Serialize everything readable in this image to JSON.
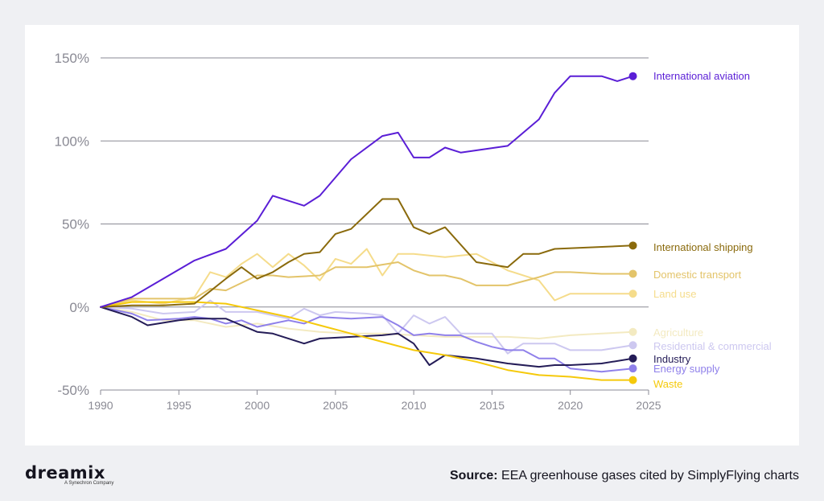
{
  "chart_data": {
    "type": "line",
    "title": "",
    "xlabel": "",
    "ylabel": "",
    "xlim": [
      1990,
      2025
    ],
    "ylim": [
      -50,
      150
    ],
    "xticks": [
      1990,
      1995,
      2000,
      2005,
      2010,
      2015,
      2020,
      2025
    ],
    "yticks": [
      150,
      100,
      50,
      0,
      -50
    ],
    "ytick_labels": [
      "150%",
      "100%",
      "50%",
      "0%",
      "-50%"
    ],
    "grid": "horizontal",
    "legend": "direct labels at line ends, right",
    "series": [
      {
        "name": "International aviation",
        "color": "#5a1ed6",
        "points": [
          [
            1990,
            0
          ],
          [
            1992,
            6
          ],
          [
            1994,
            17
          ],
          [
            1996,
            28
          ],
          [
            1998,
            35
          ],
          [
            2000,
            52
          ],
          [
            2001,
            67
          ],
          [
            2003,
            61
          ],
          [
            2004,
            67
          ],
          [
            2006,
            89
          ],
          [
            2008,
            103
          ],
          [
            2009,
            105
          ],
          [
            2010,
            90
          ],
          [
            2011,
            90
          ],
          [
            2012,
            96
          ],
          [
            2013,
            93
          ],
          [
            2016,
            97
          ],
          [
            2018,
            113
          ],
          [
            2019,
            129
          ],
          [
            2020,
            139
          ],
          [
            2022,
            139
          ],
          [
            2023,
            136
          ],
          [
            2024,
            139
          ]
        ]
      },
      {
        "name": "International shipping",
        "color": "#8a6a0c",
        "points": [
          [
            1990,
            0
          ],
          [
            1992,
            1
          ],
          [
            1994,
            1
          ],
          [
            1996,
            2
          ],
          [
            1998,
            17
          ],
          [
            1999,
            24
          ],
          [
            2000,
            17
          ],
          [
            2001,
            21
          ],
          [
            2002,
            27
          ],
          [
            2003,
            32
          ],
          [
            2004,
            33
          ],
          [
            2005,
            44
          ],
          [
            2006,
            47
          ],
          [
            2008,
            65
          ],
          [
            2009,
            65
          ],
          [
            2010,
            48
          ],
          [
            2011,
            44
          ],
          [
            2012,
            48
          ],
          [
            2014,
            27
          ],
          [
            2016,
            24
          ],
          [
            2017,
            32
          ],
          [
            2018,
            32
          ],
          [
            2019,
            35
          ],
          [
            2024,
            37
          ]
        ]
      },
      {
        "name": "Domestic transport",
        "color": "#e3c46a",
        "points": [
          [
            1990,
            0
          ],
          [
            1992,
            5
          ],
          [
            1994,
            5
          ],
          [
            1996,
            5
          ],
          [
            1997,
            11
          ],
          [
            1998,
            10
          ],
          [
            2000,
            19
          ],
          [
            2001,
            19
          ],
          [
            2002,
            18
          ],
          [
            2004,
            19
          ],
          [
            2005,
            24
          ],
          [
            2007,
            24
          ],
          [
            2009,
            27
          ],
          [
            2010,
            22
          ],
          [
            2011,
            19
          ],
          [
            2012,
            19
          ],
          [
            2013,
            17
          ],
          [
            2014,
            13
          ],
          [
            2016,
            13
          ],
          [
            2018,
            18
          ],
          [
            2019,
            21
          ],
          [
            2020,
            21
          ],
          [
            2022,
            20
          ],
          [
            2024,
            20
          ]
        ]
      },
      {
        "name": "Land use",
        "color": "#f5dc8b",
        "points": [
          [
            1990,
            0
          ],
          [
            1992,
            4
          ],
          [
            1994,
            2
          ],
          [
            1996,
            6
          ],
          [
            1997,
            21
          ],
          [
            1998,
            18
          ],
          [
            1999,
            26
          ],
          [
            2000,
            32
          ],
          [
            2001,
            24
          ],
          [
            2002,
            32
          ],
          [
            2003,
            25
          ],
          [
            2004,
            16
          ],
          [
            2005,
            29
          ],
          [
            2006,
            26
          ],
          [
            2007,
            35
          ],
          [
            2008,
            19
          ],
          [
            2009,
            32
          ],
          [
            2010,
            32
          ],
          [
            2012,
            30
          ],
          [
            2014,
            32
          ],
          [
            2016,
            22
          ],
          [
            2018,
            16
          ],
          [
            2019,
            4
          ],
          [
            2020,
            8
          ],
          [
            2022,
            8
          ],
          [
            2024,
            8
          ]
        ]
      },
      {
        "name": "Agriculture",
        "color": "#f3eac1",
        "points": [
          [
            1990,
            0
          ],
          [
            1992,
            -3
          ],
          [
            1994,
            -8
          ],
          [
            1996,
            -8
          ],
          [
            1998,
            -12
          ],
          [
            2000,
            -10
          ],
          [
            2002,
            -13
          ],
          [
            2004,
            -15
          ],
          [
            2006,
            -16
          ],
          [
            2008,
            -16
          ],
          [
            2010,
            -17
          ],
          [
            2012,
            -18
          ],
          [
            2014,
            -18
          ],
          [
            2016,
            -18
          ],
          [
            2018,
            -19
          ],
          [
            2020,
            -17
          ],
          [
            2022,
            -16
          ],
          [
            2024,
            -15
          ]
        ]
      },
      {
        "name": "Residential & commercial",
        "color": "#cdc8f0",
        "points": [
          [
            1990,
            0
          ],
          [
            1992,
            -1
          ],
          [
            1994,
            -4
          ],
          [
            1996,
            -3
          ],
          [
            1997,
            4
          ],
          [
            1998,
            -3
          ],
          [
            2000,
            -3
          ],
          [
            2001,
            -5
          ],
          [
            2002,
            -7
          ],
          [
            2003,
            -1
          ],
          [
            2004,
            -5
          ],
          [
            2005,
            -3
          ],
          [
            2007,
            -4
          ],
          [
            2008,
            -5
          ],
          [
            2009,
            -16
          ],
          [
            2010,
            -5
          ],
          [
            2011,
            -10
          ],
          [
            2012,
            -6
          ],
          [
            2013,
            -16
          ],
          [
            2014,
            -16
          ],
          [
            2015,
            -16
          ],
          [
            2016,
            -28
          ],
          [
            2017,
            -22
          ],
          [
            2018,
            -22
          ],
          [
            2019,
            -22
          ],
          [
            2020,
            -26
          ],
          [
            2022,
            -26
          ],
          [
            2024,
            -23
          ]
        ]
      },
      {
        "name": "Industry",
        "color": "#241c57",
        "points": [
          [
            1990,
            0
          ],
          [
            1992,
            -6
          ],
          [
            1993,
            -11
          ],
          [
            1995,
            -8
          ],
          [
            1996,
            -7
          ],
          [
            1998,
            -7
          ],
          [
            1999,
            -11
          ],
          [
            2000,
            -15
          ],
          [
            2001,
            -16
          ],
          [
            2003,
            -22
          ],
          [
            2004,
            -19
          ],
          [
            2006,
            -18
          ],
          [
            2008,
            -17
          ],
          [
            2009,
            -16
          ],
          [
            2010,
            -22
          ],
          [
            2011,
            -35
          ],
          [
            2012,
            -29
          ],
          [
            2014,
            -31
          ],
          [
            2016,
            -34
          ],
          [
            2018,
            -36
          ],
          [
            2019,
            -35
          ],
          [
            2020,
            -35
          ],
          [
            2022,
            -34
          ],
          [
            2024,
            -31
          ]
        ]
      },
      {
        "name": "Energy supply",
        "color": "#8f80ea",
        "points": [
          [
            1990,
            0
          ],
          [
            1992,
            -4
          ],
          [
            1993,
            -8
          ],
          [
            1995,
            -7
          ],
          [
            1996,
            -6
          ],
          [
            1997,
            -7
          ],
          [
            1998,
            -10
          ],
          [
            1999,
            -8
          ],
          [
            2000,
            -12
          ],
          [
            2001,
            -10
          ],
          [
            2002,
            -8
          ],
          [
            2003,
            -10
          ],
          [
            2004,
            -6
          ],
          [
            2006,
            -7
          ],
          [
            2008,
            -6
          ],
          [
            2009,
            -11
          ],
          [
            2010,
            -17
          ],
          [
            2011,
            -16
          ],
          [
            2012,
            -17
          ],
          [
            2013,
            -17
          ],
          [
            2014,
            -21
          ],
          [
            2015,
            -24
          ],
          [
            2016,
            -26
          ],
          [
            2017,
            -26
          ],
          [
            2018,
            -31
          ],
          [
            2019,
            -31
          ],
          [
            2020,
            -37
          ],
          [
            2022,
            -39
          ],
          [
            2024,
            -37
          ]
        ]
      },
      {
        "name": "Waste",
        "color": "#f5c90a",
        "points": [
          [
            1990,
            0
          ],
          [
            1992,
            3
          ],
          [
            1994,
            3
          ],
          [
            1996,
            3
          ],
          [
            1998,
            2
          ],
          [
            2000,
            -2
          ],
          [
            2002,
            -6
          ],
          [
            2004,
            -11
          ],
          [
            2006,
            -16
          ],
          [
            2008,
            -21
          ],
          [
            2010,
            -26
          ],
          [
            2012,
            -29
          ],
          [
            2014,
            -33
          ],
          [
            2016,
            -38
          ],
          [
            2018,
            -41
          ],
          [
            2020,
            -42
          ],
          [
            2022,
            -44
          ],
          [
            2024,
            -44
          ]
        ]
      }
    ]
  },
  "footer": {
    "brand": "dreamix",
    "tagline": "A Synechron Company",
    "source_label": "Source:",
    "source_text": " EEA greenhouse gases cited by SimplyFlying charts"
  }
}
